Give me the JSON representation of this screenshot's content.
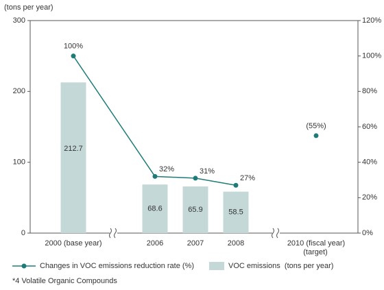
{
  "chart_data": {
    "type": "bar",
    "y_axis_label": "(tons per year)",
    "categories": [
      "2000 (base year)",
      "2006",
      "2007",
      "2008",
      "2010 (fiscal year)"
    ],
    "target_label": "(target)",
    "ylim": [
      0,
      300
    ],
    "yticks": [
      0,
      100,
      200,
      300
    ],
    "y2lim": [
      0,
      120
    ],
    "y2ticks": [
      {
        "value": 0,
        "label": "0%"
      },
      {
        "value": 20,
        "label": "20%"
      },
      {
        "value": 40,
        "label": "40%"
      },
      {
        "value": 60,
        "label": "60%"
      },
      {
        "value": 80,
        "label": "80%"
      },
      {
        "value": 100,
        "label": "100%"
      },
      {
        "value": 120,
        "label": "120%"
      }
    ],
    "series": [
      {
        "name": "VOC emissions  (tons per year)",
        "type": "bar",
        "color": "#c4d8d8",
        "values": [
          212.7,
          68.6,
          65.9,
          58.5,
          null
        ]
      },
      {
        "name": "Changes in VOC emissions reduction rate (%)",
        "type": "line",
        "axis": "y2",
        "color": "#1e7b78",
        "values": [
          100,
          32,
          31,
          27,
          null
        ],
        "value_labels": [
          "100%",
          "32%",
          "31%",
          "27%",
          null
        ]
      }
    ],
    "target": {
      "value": 55,
      "label": "(55%)"
    },
    "footnote": "*4 Volatile Organic Compounds"
  }
}
